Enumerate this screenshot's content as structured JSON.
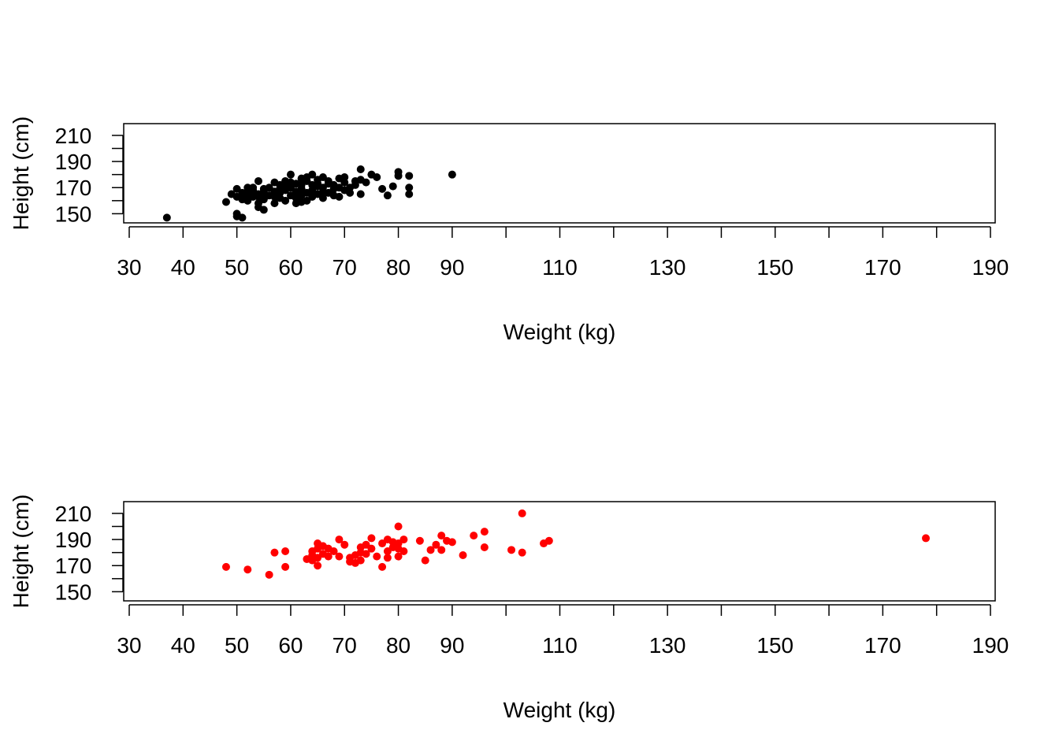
{
  "chart_data": [
    {
      "type": "scatter",
      "xlabel": "Weight (kg)",
      "ylabel": "Height (cm)",
      "xlim": [
        30,
        190
      ],
      "ylim": [
        143,
        219
      ],
      "x_ticks": [
        30,
        40,
        50,
        60,
        70,
        80,
        90,
        100,
        110,
        120,
        130,
        140,
        150,
        160,
        170,
        180,
        190
      ],
      "x_tick_labels": [
        "30",
        "40",
        "50",
        "60",
        "70",
        "80",
        "90",
        "",
        "110",
        "",
        "130",
        "",
        "150",
        "",
        "170",
        "",
        "190"
      ],
      "y_ticks": [
        150,
        160,
        170,
        180,
        190,
        200,
        210
      ],
      "y_tick_labels": [
        "150",
        "",
        "170",
        "",
        "190",
        "",
        "210"
      ],
      "grid": false,
      "color": "#000000",
      "points": [
        [
          37,
          147
        ],
        [
          48,
          159
        ],
        [
          49,
          165
        ],
        [
          50,
          150
        ],
        [
          50,
          148
        ],
        [
          50,
          163
        ],
        [
          50,
          169
        ],
        [
          51,
          147
        ],
        [
          51,
          166
        ],
        [
          51,
          161
        ],
        [
          52,
          170
        ],
        [
          52,
          164
        ],
        [
          52,
          167
        ],
        [
          52,
          160
        ],
        [
          53,
          168
        ],
        [
          53,
          163
        ],
        [
          53,
          170
        ],
        [
          54,
          158
        ],
        [
          54,
          165
        ],
        [
          54,
          155
        ],
        [
          54,
          175
        ],
        [
          54,
          163
        ],
        [
          55,
          167
        ],
        [
          55,
          162
        ],
        [
          55,
          153
        ],
        [
          55,
          169
        ],
        [
          55,
          161
        ],
        [
          56,
          164
        ],
        [
          56,
          170
        ],
        [
          57,
          174
        ],
        [
          57,
          167
        ],
        [
          57,
          158
        ],
        [
          57,
          163
        ],
        [
          58,
          172
        ],
        [
          58,
          162
        ],
        [
          58,
          169
        ],
        [
          58,
          166
        ],
        [
          59,
          175
        ],
        [
          59,
          168
        ],
        [
          59,
          160
        ],
        [
          59,
          171
        ],
        [
          60,
          174
        ],
        [
          60,
          164
        ],
        [
          60,
          170
        ],
        [
          60,
          180
        ],
        [
          61,
          162
        ],
        [
          61,
          167
        ],
        [
          61,
          173
        ],
        [
          61,
          158
        ],
        [
          62,
          177
        ],
        [
          62,
          164
        ],
        [
          62,
          169
        ],
        [
          62,
          159
        ],
        [
          62,
          172
        ],
        [
          63,
          175
        ],
        [
          63,
          166
        ],
        [
          63,
          178
        ],
        [
          63,
          160
        ],
        [
          64,
          168
        ],
        [
          64,
          172
        ],
        [
          64,
          163
        ],
        [
          64,
          180
        ],
        [
          65,
          171
        ],
        [
          65,
          165
        ],
        [
          65,
          176
        ],
        [
          65,
          173
        ],
        [
          66,
          167
        ],
        [
          66,
          162
        ],
        [
          66,
          178
        ],
        [
          66,
          170
        ],
        [
          67,
          173
        ],
        [
          67,
          166
        ],
        [
          67,
          175
        ],
        [
          68,
          164
        ],
        [
          68,
          169
        ],
        [
          68,
          172
        ],
        [
          69,
          170
        ],
        [
          69,
          177
        ],
        [
          69,
          163
        ],
        [
          70,
          174
        ],
        [
          70,
          168
        ],
        [
          70,
          178
        ],
        [
          71,
          170
        ],
        [
          71,
          166
        ],
        [
          72,
          175
        ],
        [
          72,
          172
        ],
        [
          73,
          184
        ],
        [
          73,
          176
        ],
        [
          73,
          165
        ],
        [
          74,
          174
        ],
        [
          75,
          180
        ],
        [
          76,
          178
        ],
        [
          77,
          169
        ],
        [
          78,
          164
        ],
        [
          79,
          171
        ],
        [
          80,
          182
        ],
        [
          80,
          179
        ],
        [
          82,
          179
        ],
        [
          82,
          170
        ],
        [
          82,
          165
        ],
        [
          90,
          180
        ]
      ]
    },
    {
      "type": "scatter",
      "xlabel": "Weight (kg)",
      "ylabel": "Height (cm)",
      "xlim": [
        30,
        190
      ],
      "ylim": [
        143,
        219
      ],
      "x_ticks": [
        30,
        40,
        50,
        60,
        70,
        80,
        90,
        100,
        110,
        120,
        130,
        140,
        150,
        160,
        170,
        180,
        190
      ],
      "x_tick_labels": [
        "30",
        "40",
        "50",
        "60",
        "70",
        "80",
        "90",
        "",
        "110",
        "",
        "130",
        "",
        "150",
        "",
        "170",
        "",
        "190"
      ],
      "y_ticks": [
        150,
        160,
        170,
        180,
        190,
        200,
        210
      ],
      "y_tick_labels": [
        "150",
        "",
        "170",
        "",
        "190",
        "",
        "210"
      ],
      "grid": false,
      "color": "#ff0000",
      "points": [
        [
          48,
          169
        ],
        [
          52,
          167
        ],
        [
          56,
          163
        ],
        [
          57,
          180
        ],
        [
          59,
          181
        ],
        [
          59,
          169
        ],
        [
          63,
          175
        ],
        [
          64,
          178
        ],
        [
          64,
          174
        ],
        [
          64,
          181
        ],
        [
          65,
          187
        ],
        [
          65,
          183
        ],
        [
          65,
          176
        ],
        [
          65,
          170
        ],
        [
          66,
          185
        ],
        [
          66,
          179
        ],
        [
          67,
          183
        ],
        [
          67,
          177
        ],
        [
          68,
          181
        ],
        [
          69,
          190
        ],
        [
          69,
          177
        ],
        [
          70,
          186
        ],
        [
          71,
          176
        ],
        [
          71,
          173
        ],
        [
          72,
          178
        ],
        [
          72,
          172
        ],
        [
          73,
          184
        ],
        [
          73,
          180
        ],
        [
          73,
          174
        ],
        [
          74,
          186
        ],
        [
          74,
          179
        ],
        [
          75,
          191
        ],
        [
          75,
          183
        ],
        [
          76,
          177
        ],
        [
          77,
          187
        ],
        [
          77,
          169
        ],
        [
          78,
          190
        ],
        [
          78,
          181
        ],
        [
          78,
          176
        ],
        [
          79,
          188
        ],
        [
          79,
          184
        ],
        [
          80,
          200
        ],
        [
          80,
          187
        ],
        [
          80,
          183
        ],
        [
          80,
          177
        ],
        [
          81,
          190
        ],
        [
          81,
          181
        ],
        [
          84,
          189
        ],
        [
          85,
          174
        ],
        [
          86,
          182
        ],
        [
          87,
          186
        ],
        [
          88,
          193
        ],
        [
          88,
          182
        ],
        [
          89,
          189
        ],
        [
          90,
          188
        ],
        [
          92,
          178
        ],
        [
          94,
          193
        ],
        [
          96,
          196
        ],
        [
          96,
          184
        ],
        [
          101,
          182
        ],
        [
          103,
          210
        ],
        [
          103,
          180
        ],
        [
          107,
          187
        ],
        [
          108,
          189
        ],
        [
          178,
          191
        ]
      ]
    }
  ]
}
